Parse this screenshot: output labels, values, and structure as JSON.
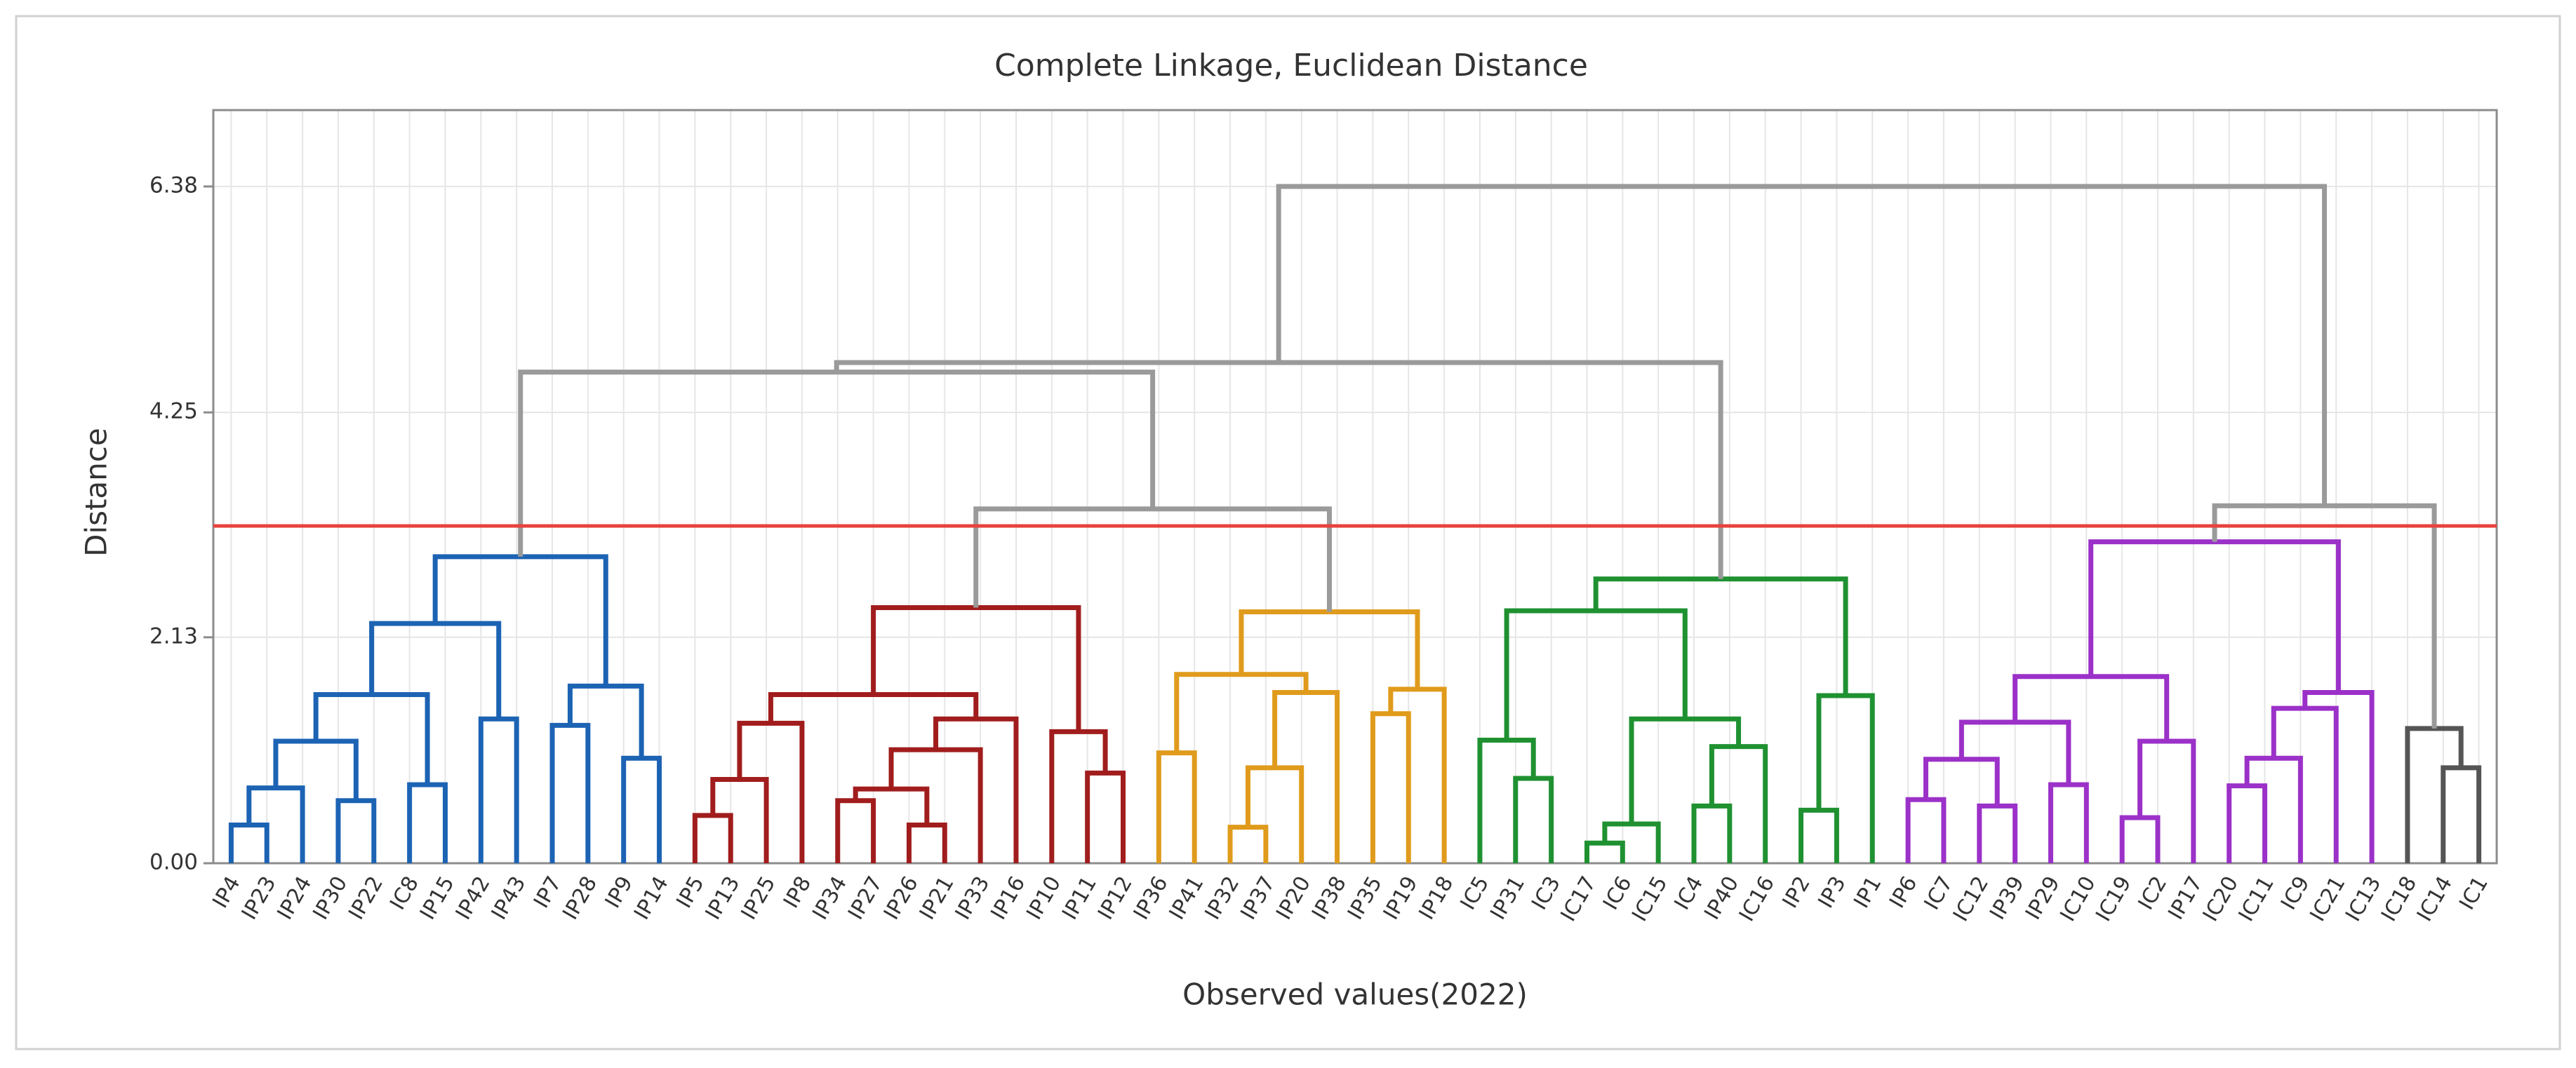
{
  "chart_data": {
    "type": "dendrogram",
    "title": "Complete Linkage, Euclidean Distance",
    "x_label": "Observed values(2022)",
    "y_label": "Distance",
    "ylim": [
      0,
      7.1
    ],
    "yticks": [
      {
        "value": 0,
        "label": "0.00"
      },
      2.13,
      4.25,
      6.38
    ],
    "grid": true,
    "cut_height": 3.18,
    "cut_color": "#e8423e",
    "tree": {
      "height": 6.38,
      "color": "#9a9a9a",
      "children": [
        {
          "height": 4.72,
          "children": [
            {
              "height": 4.63,
              "children": [
                {
                  "height": 2.89,
                  "color": "#1c63b4",
                  "children": [
                    {
                      "height": 2.26,
                      "children": [
                        {
                          "height": 1.59,
                          "children": [
                            {
                              "height": 1.15,
                              "children": [
                                {
                                  "height": 0.71,
                                  "children": [
                                    {
                                      "height": 0.36,
                                      "children": [
                                        {
                                          "label": "IP4"
                                        },
                                        {
                                          "label": "IP23"
                                        }
                                      ]
                                    },
                                    {
                                      "label": "IP24"
                                    }
                                  ]
                                },
                                {
                                  "height": 0.59,
                                  "children": [
                                    {
                                      "label": "IP30"
                                    },
                                    {
                                      "label": "IP22"
                                    }
                                  ]
                                }
                              ]
                            },
                            {
                              "height": 0.74,
                              "children": [
                                {
                                  "label": "IC8"
                                },
                                {
                                  "label": "IP15"
                                }
                              ]
                            }
                          ]
                        },
                        {
                          "height": 1.36,
                          "children": [
                            {
                              "label": "IP42"
                            },
                            {
                              "label": "IP43"
                            }
                          ]
                        }
                      ]
                    },
                    {
                      "height": 1.67,
                      "children": [
                        {
                          "height": 1.3,
                          "children": [
                            {
                              "label": "IP7"
                            },
                            {
                              "label": "IP28"
                            }
                          ]
                        },
                        {
                          "height": 0.99,
                          "children": [
                            {
                              "label": "IP9"
                            },
                            {
                              "label": "IP14"
                            }
                          ]
                        }
                      ]
                    }
                  ]
                },
                {
                  "height": 3.34,
                  "children": [
                    {
                      "height": 2.41,
                      "color": "#a11d1d",
                      "children": [
                        {
                          "height": 1.59,
                          "children": [
                            {
                              "height": 1.32,
                              "children": [
                                {
                                  "height": 0.79,
                                  "children": [
                                    {
                                      "height": 0.45,
                                      "children": [
                                        {
                                          "label": "IP5"
                                        },
                                        {
                                          "label": "IP13"
                                        }
                                      ]
                                    },
                                    {
                                      "label": "IP25"
                                    }
                                  ]
                                },
                                {
                                  "label": "IP8"
                                }
                              ]
                            },
                            {
                              "height": 1.36,
                              "children": [
                                {
                                  "height": 1.07,
                                  "children": [
                                    {
                                      "height": 0.7,
                                      "children": [
                                        {
                                          "height": 0.59,
                                          "children": [
                                            {
                                              "label": "IP34"
                                            },
                                            {
                                              "label": "IP27"
                                            }
                                          ]
                                        },
                                        {
                                          "height": 0.36,
                                          "children": [
                                            {
                                              "label": "IP26"
                                            },
                                            {
                                              "label": "IP21"
                                            }
                                          ]
                                        }
                                      ]
                                    },
                                    {
                                      "label": "IP33"
                                    }
                                  ]
                                },
                                {
                                  "label": "IP16"
                                }
                              ]
                            }
                          ]
                        },
                        {
                          "height": 1.24,
                          "children": [
                            {
                              "label": "IP10"
                            },
                            {
                              "height": 0.85,
                              "children": [
                                {
                                  "label": "IP11"
                                },
                                {
                                  "label": "IP12"
                                }
                              ]
                            }
                          ]
                        }
                      ]
                    },
                    {
                      "height": 2.37,
                      "color": "#e09b1c",
                      "children": [
                        {
                          "height": 1.78,
                          "children": [
                            {
                              "height": 1.04,
                              "children": [
                                {
                                  "label": "IP36"
                                },
                                {
                                  "label": "IP41"
                                }
                              ]
                            },
                            {
                              "height": 1.61,
                              "children": [
                                {
                                  "height": 0.9,
                                  "children": [
                                    {
                                      "height": 0.34,
                                      "children": [
                                        {
                                          "label": "IP32"
                                        },
                                        {
                                          "label": "IP37"
                                        }
                                      ]
                                    },
                                    {
                                      "label": "IP20"
                                    }
                                  ]
                                },
                                {
                                  "label": "IP38"
                                }
                              ]
                            }
                          ]
                        },
                        {
                          "height": 1.64,
                          "children": [
                            {
                              "height": 1.41,
                              "children": [
                                {
                                  "label": "IP35"
                                },
                                {
                                  "label": "IP19"
                                }
                              ]
                            },
                            {
                              "label": "IP18"
                            }
                          ]
                        }
                      ]
                    }
                  ]
                }
              ]
            },
            {
              "height": 2.68,
              "color": "#1f9131",
              "children": [
                {
                  "height": 2.38,
                  "children": [
                    {
                      "height": 1.16,
                      "children": [
                        {
                          "label": "IC5"
                        },
                        {
                          "height": 0.8,
                          "children": [
                            {
                              "label": "IP31"
                            },
                            {
                              "label": "IC3"
                            }
                          ]
                        }
                      ]
                    },
                    {
                      "height": 1.36,
                      "children": [
                        {
                          "height": 0.37,
                          "children": [
                            {
                              "height": 0.19,
                              "children": [
                                {
                                  "label": "IC17"
                                },
                                {
                                  "label": "IC6"
                                }
                              ]
                            },
                            {
                              "label": "IC15"
                            }
                          ]
                        },
                        {
                          "height": 1.1,
                          "children": [
                            {
                              "height": 0.54,
                              "children": [
                                {
                                  "label": "IC4"
                                },
                                {
                                  "label": "IP40"
                                }
                              ]
                            },
                            {
                              "label": "IC16"
                            }
                          ]
                        }
                      ]
                    }
                  ]
                },
                {
                  "height": 1.58,
                  "children": [
                    {
                      "height": 0.5,
                      "children": [
                        {
                          "label": "IP2"
                        },
                        {
                          "label": "IP3"
                        }
                      ]
                    },
                    {
                      "label": "IP1"
                    }
                  ]
                }
              ]
            }
          ]
        },
        {
          "height": 3.37,
          "children": [
            {
              "height": 3.03,
              "color": "#9b31c8",
              "children": [
                {
                  "height": 1.76,
                  "children": [
                    {
                      "height": 1.33,
                      "children": [
                        {
                          "height": 0.98,
                          "children": [
                            {
                              "height": 0.6,
                              "children": [
                                {
                                  "label": "IP6"
                                },
                                {
                                  "label": "IC7"
                                }
                              ]
                            },
                            {
                              "height": 0.54,
                              "children": [
                                {
                                  "label": "IC12"
                                },
                                {
                                  "label": "IP39"
                                }
                              ]
                            }
                          ]
                        },
                        {
                          "height": 0.74,
                          "children": [
                            {
                              "label": "IP29"
                            },
                            {
                              "label": "IC10"
                            }
                          ]
                        }
                      ]
                    },
                    {
                      "height": 1.15,
                      "children": [
                        {
                          "height": 0.43,
                          "children": [
                            {
                              "label": "IC19"
                            },
                            {
                              "label": "IC2"
                            }
                          ]
                        },
                        {
                          "label": "IP17"
                        }
                      ]
                    }
                  ]
                },
                {
                  "height": 1.61,
                  "children": [
                    {
                      "height": 1.46,
                      "children": [
                        {
                          "height": 0.99,
                          "children": [
                            {
                              "height": 0.73,
                              "children": [
                                {
                                  "label": "IC20"
                                },
                                {
                                  "label": "IC11"
                                }
                              ]
                            },
                            {
                              "label": "IC9"
                            }
                          ]
                        },
                        {
                          "label": "IC21"
                        }
                      ]
                    },
                    {
                      "label": "IC13"
                    }
                  ]
                }
              ]
            },
            {
              "height": 1.27,
              "color": "#555555",
              "children": [
                {
                  "label": "IC18"
                },
                {
                  "height": 0.9,
                  "children": [
                    {
                      "label": "IC14"
                    },
                    {
                      "label": "IC1"
                    }
                  ]
                }
              ]
            }
          ]
        }
      ]
    }
  }
}
